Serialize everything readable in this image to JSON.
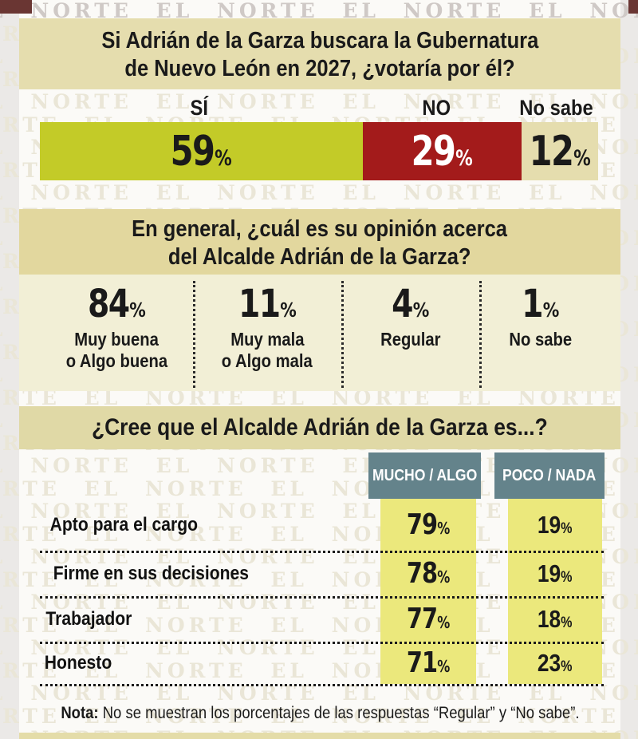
{
  "percent": "%",
  "watermark": {
    "text": "EL NORTE"
  },
  "colors": {
    "green": "#c3cb28",
    "dark_red": "#a31b1b",
    "cream": "#e5ddae",
    "header_beige_1": "#e5ddae",
    "header_gold_2": "#e2d79e",
    "header_beige_3": "#e0d9a6",
    "body_cream": "#f2efd6",
    "slate_blue": "#64838b",
    "yellow_column": "#ebe87c",
    "bottom_strip": "#e4dca8"
  },
  "vote_section": {
    "title_line1": "Si Adrián de la Garza buscara la Gubernatura",
    "title_line2": "de Nuevo León en 2027, ¿votaría por él?",
    "segments": [
      {
        "label": "SÍ",
        "value": "59",
        "color": "#c3cb28",
        "text_color": "#1a1a1a"
      },
      {
        "label": "NO",
        "value": "29",
        "color": "#a31b1b",
        "text_color": "#ffffff"
      },
      {
        "label": "No sabe",
        "value": "12",
        "color": "#e5ddae",
        "text_color": "#1a1a1a"
      }
    ]
  },
  "opinion_section": {
    "title_line1": "En general, ¿cuál es su opinión acerca",
    "title_line2": "del Alcalde Adrián de la Garza?",
    "columns": [
      {
        "value": "84",
        "label_line1": "Muy buena",
        "label_line2": "o Algo buena"
      },
      {
        "value": "11",
        "label_line1": "Muy mala",
        "label_line2": "o Algo mala"
      },
      {
        "value": "4",
        "label_line1": "Regular",
        "label_line2": ""
      },
      {
        "value": "1",
        "label_line1": "No sabe",
        "label_line2": ""
      }
    ]
  },
  "traits_section": {
    "title": "¿Cree que el Alcalde Adrián de la Garza es...?",
    "col_headers": [
      "MUCHO / ALGO",
      "POCO / NADA"
    ],
    "rows": [
      {
        "label": "Apto para el cargo",
        "mucho": "79",
        "poco": "19"
      },
      {
        "label": "Firme en sus decisiones",
        "mucho": "78",
        "poco": "19"
      },
      {
        "label": "Trabajador",
        "mucho": "77",
        "poco": "18"
      },
      {
        "label": "Honesto",
        "mucho": "71",
        "poco": "23"
      }
    ]
  },
  "note": {
    "bold": "Nota:",
    "text": "No se muestran los porcentajes de las respuestas “Regular” y “No sabe”."
  },
  "chart_data": [
    {
      "type": "bar",
      "title": "Si Adrián de la Garza buscara la Gubernatura de Nuevo León en 2027, ¿votaría por él?",
      "categories": [
        "SÍ",
        "NO",
        "No sabe"
      ],
      "values": [
        59,
        29,
        12
      ],
      "unit": "%",
      "layout": "horizontal stacked single bar",
      "colors": [
        "#c3cb28",
        "#a31b1b",
        "#e5ddae"
      ]
    },
    {
      "type": "bar",
      "title": "En general, ¿cuál es su opinión acerca del Alcalde Adrián de la Garza?",
      "categories": [
        "Muy buena o Algo buena",
        "Muy mala o Algo mala",
        "Regular",
        "No sabe"
      ],
      "values": [
        84,
        11,
        4,
        1
      ],
      "unit": "%",
      "layout": "big-number columns with dotted separators"
    },
    {
      "type": "table",
      "title": "¿Cree que el Alcalde Adrián de la Garza es...?",
      "categories": [
        "Apto para el cargo",
        "Firme en sus decisiones",
        "Trabajador",
        "Honesto"
      ],
      "series": [
        {
          "name": "MUCHO / ALGO",
          "values": [
            79,
            78,
            77,
            71
          ]
        },
        {
          "name": "POCO / NADA",
          "values": [
            19,
            19,
            18,
            23
          ]
        }
      ],
      "unit": "%"
    }
  ]
}
